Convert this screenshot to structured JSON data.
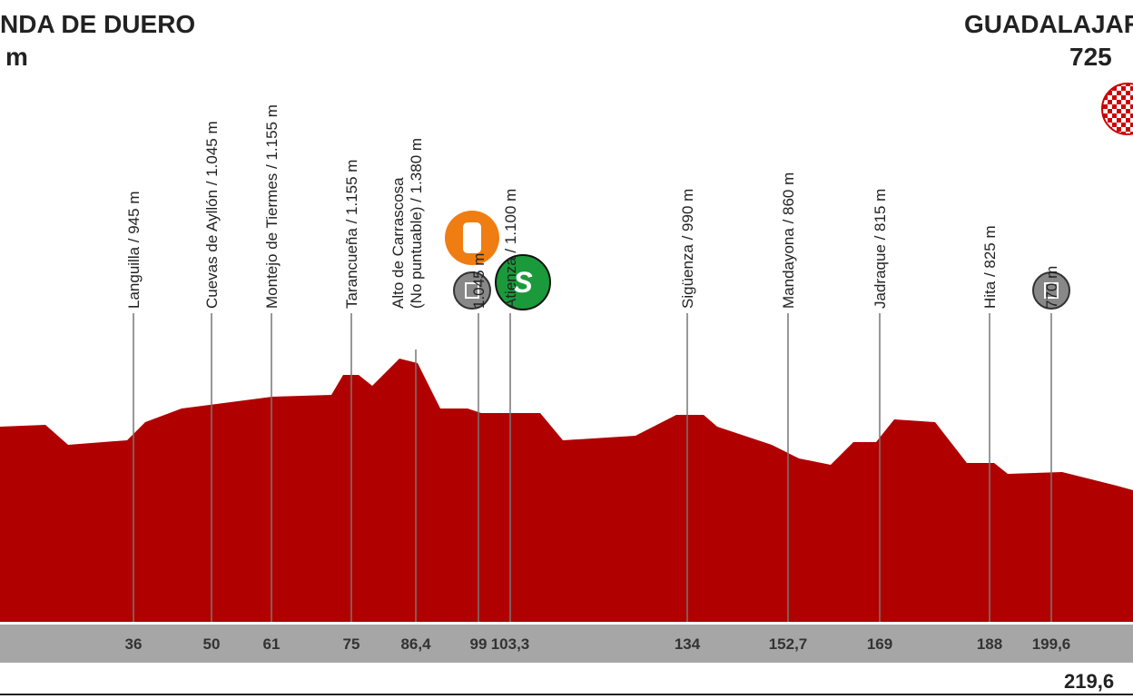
{
  "start": {
    "name": "NDA DE DUERO",
    "altitude": "m"
  },
  "finish": {
    "name": "GUADALAJAR",
    "altitude": "725"
  },
  "total_distance": "219,6",
  "points": [
    {
      "lines": [
        "Languilla / 945 m"
      ],
      "km": "36"
    },
    {
      "lines": [
        "Cuevas de Ayllón / 1.045 m"
      ],
      "km": "50"
    },
    {
      "lines": [
        "Montejo de Tiermes / 1.155 m"
      ],
      "km": "61"
    },
    {
      "lines": [
        "Tarancueña / 1.155 m"
      ],
      "km": "75"
    },
    {
      "lines": [
        "Alto de Carrascosa",
        "(No puntuable) / 1.380 m"
      ],
      "km": "86,4"
    },
    {
      "lines": [
        "1.045 m"
      ],
      "km": "99"
    },
    {
      "lines": [
        "Atienza / 1.100 m"
      ],
      "km": "103,3"
    },
    {
      "lines": [
        "Sigüenza / 990 m"
      ],
      "km": "134"
    },
    {
      "lines": [
        "Mandayona / 860 m"
      ],
      "km": "152,7"
    },
    {
      "lines": [
        "Jadraque / 815 m"
      ],
      "km": "169"
    },
    {
      "lines": [
        "Hita / 825 m"
      ],
      "km": "188"
    },
    {
      "lines": [
        "770 m"
      ],
      "km": "199,6"
    }
  ]
}
